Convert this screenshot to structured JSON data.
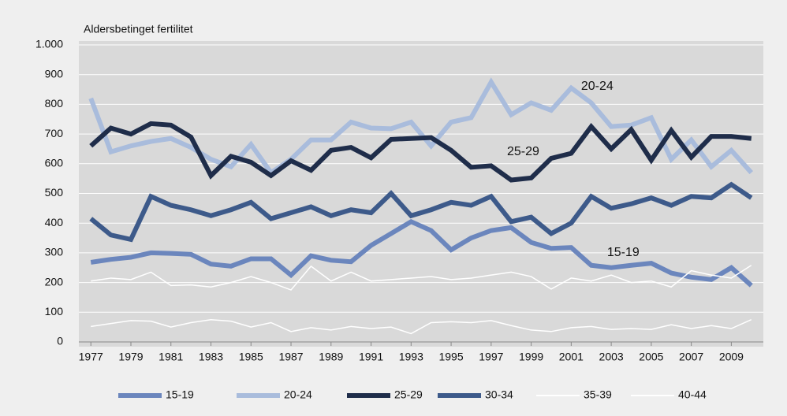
{
  "chart_data": {
    "type": "line",
    "ylabel": "Aldersbetinget fertilitet",
    "x": [
      1977,
      1978,
      1979,
      1980,
      1981,
      1982,
      1983,
      1984,
      1985,
      1986,
      1987,
      1988,
      1989,
      1990,
      1991,
      1992,
      1993,
      1994,
      1995,
      1996,
      1997,
      1998,
      1999,
      2000,
      2001,
      2002,
      2003,
      2004,
      2005,
      2006,
      2007,
      2008,
      2009,
      2010
    ],
    "xlim": [
      1976.4,
      2010.6
    ],
    "xticks": [
      1977,
      1979,
      1981,
      1983,
      1985,
      1987,
      1989,
      1991,
      1993,
      1995,
      1997,
      1999,
      2001,
      2003,
      2005,
      2007,
      2009
    ],
    "ylim": [
      0,
      1000
    ],
    "yticks": [
      0,
      100,
      200,
      300,
      400,
      500,
      600,
      700,
      800,
      900,
      {
        "value": 1000,
        "label": "1.000"
      }
    ],
    "grid": true,
    "legend": "bottom",
    "series": [
      {
        "name": "15-19",
        "color": "#6b86bd",
        "width": 6,
        "values": [
          268,
          278,
          285,
          300,
          298,
          295,
          262,
          255,
          280,
          280,
          225,
          290,
          275,
          270,
          325,
          365,
          405,
          375,
          310,
          350,
          375,
          385,
          335,
          315,
          318,
          258,
          250,
          258,
          265,
          232,
          218,
          210,
          250,
          190
        ]
      },
      {
        "name": "20-24",
        "color": "#a9bcdc",
        "width": 6,
        "values": [
          820,
          640,
          660,
          675,
          685,
          655,
          615,
          590,
          665,
          570,
          615,
          680,
          680,
          740,
          720,
          718,
          740,
          660,
          740,
          755,
          875,
          765,
          805,
          780,
          855,
          805,
          725,
          730,
          755,
          615,
          680,
          590,
          645,
          570
        ]
      },
      {
        "name": "25-29",
        "color": "#1f2d4a",
        "width": 6,
        "values": [
          660,
          720,
          700,
          735,
          730,
          690,
          560,
          625,
          605,
          560,
          610,
          578,
          645,
          655,
          620,
          682,
          685,
          688,
          645,
          588,
          593,
          545,
          552,
          618,
          635,
          725,
          650,
          715,
          612,
          712,
          622,
          692,
          692,
          685
        ]
      },
      {
        "name": "30-34",
        "color": "#3d5a8a",
        "width": 6,
        "values": [
          415,
          360,
          345,
          490,
          460,
          445,
          425,
          445,
          470,
          415,
          435,
          455,
          425,
          445,
          435,
          500,
          425,
          445,
          470,
          460,
          490,
          405,
          420,
          365,
          400,
          490,
          450,
          465,
          485,
          460,
          490,
          485,
          530,
          485
        ]
      },
      {
        "name": "35-39",
        "color": "#ffffff",
        "width": 1.5,
        "values": [
          205,
          215,
          210,
          235,
          190,
          192,
          185,
          200,
          220,
          200,
          175,
          255,
          205,
          235,
          205,
          210,
          215,
          220,
          210,
          215,
          225,
          235,
          220,
          178,
          215,
          205,
          225,
          200,
          205,
          185,
          240,
          225,
          215,
          258
        ]
      },
      {
        "name": "40-44",
        "color": "#ffffff",
        "width": 1.5,
        "values": [
          52,
          62,
          72,
          70,
          50,
          65,
          75,
          70,
          50,
          65,
          35,
          48,
          40,
          52,
          45,
          50,
          28,
          65,
          68,
          65,
          72,
          55,
          40,
          35,
          48,
          52,
          42,
          45,
          42,
          58,
          45,
          55,
          45,
          75
        ]
      }
    ],
    "annotations": [
      "20-24",
      "25-29",
      "15-19"
    ]
  }
}
